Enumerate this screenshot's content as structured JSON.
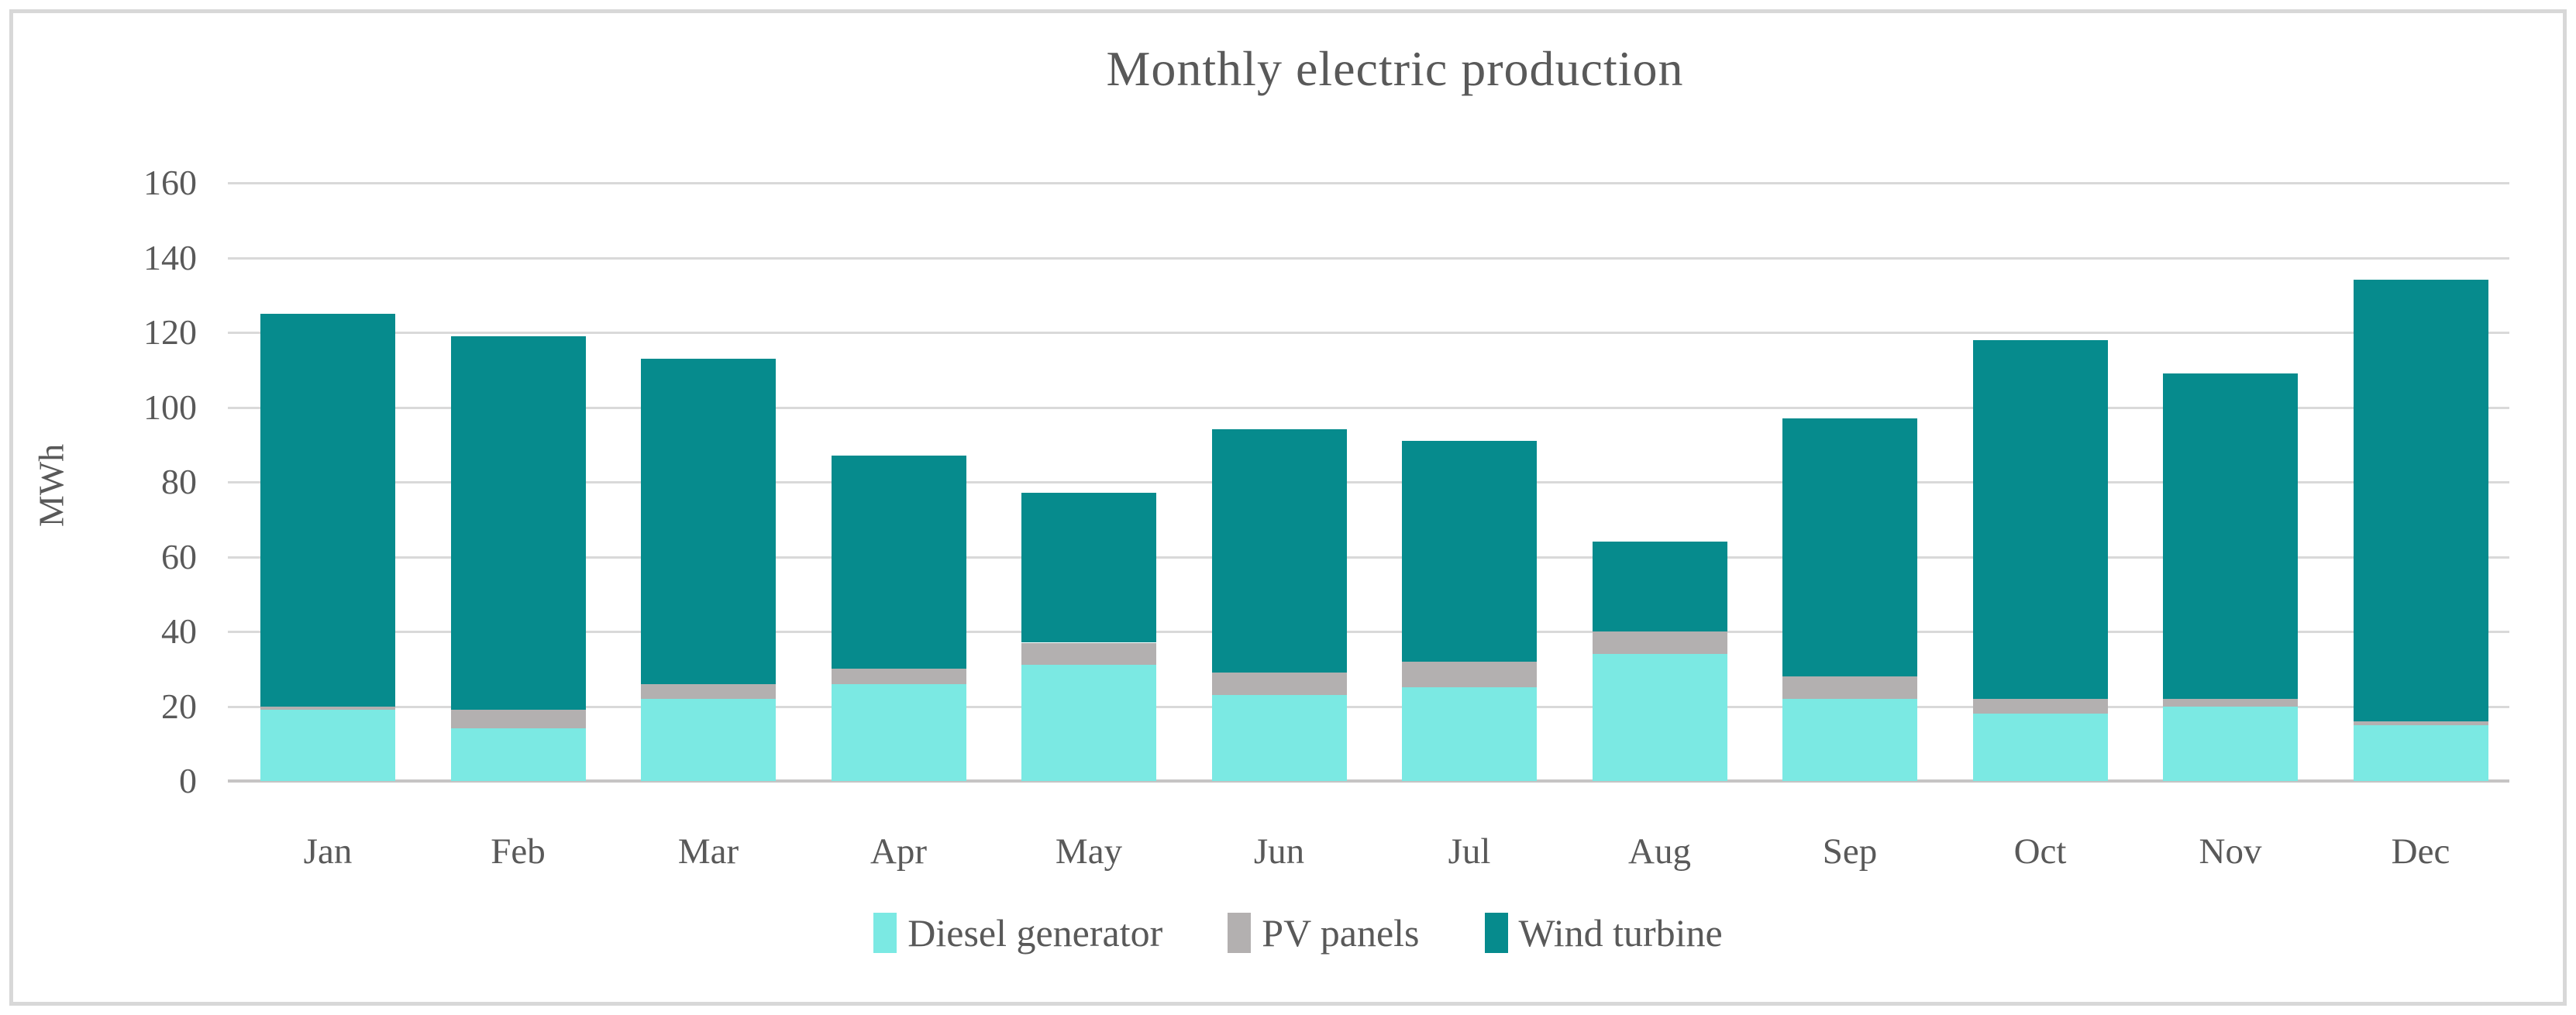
{
  "figure": {
    "title": "Monthly electric production",
    "y_axis_title": "MWh"
  },
  "chart_data": {
    "type": "bar",
    "stacked": true,
    "title": "Monthly electric production",
    "xlabel": "",
    "ylabel": "MWh",
    "ylim": [
      0,
      160
    ],
    "ytick_step": 20,
    "ytick_labels": [
      "0",
      "20",
      "40",
      "60",
      "80",
      "100",
      "120",
      "140",
      "160"
    ],
    "grid": true,
    "legend_position": "bottom",
    "categories": [
      "Jan",
      "Feb",
      "Mar",
      "Apr",
      "May",
      "Jun",
      "Jul",
      "Aug",
      "Sep",
      "Oct",
      "Nov",
      "Dec"
    ],
    "series": [
      {
        "name": "Diesel generator",
        "color": "#7BE9E3",
        "values": [
          19,
          14,
          22,
          26,
          31,
          23,
          25,
          34,
          22,
          18,
          20,
          15
        ]
      },
      {
        "name": "PV panels",
        "color": "#B3B0B0",
        "values": [
          1,
          5,
          4,
          4,
          6,
          6,
          7,
          6,
          6,
          4,
          2,
          1
        ]
      },
      {
        "name": "Wind turbine",
        "color": "#068B8D",
        "values": [
          105,
          100,
          87,
          57,
          40,
          65,
          59,
          24,
          69,
          96,
          87,
          118
        ]
      }
    ],
    "stack_totals": [
      125,
      119,
      113,
      87,
      77,
      94,
      91,
      64,
      97,
      118,
      109,
      134
    ],
    "units": "MWh"
  },
  "colors": {
    "accent_teal": "#068B8D",
    "accent_cyan": "#7BE9E3",
    "accent_gray": "#B3B0B0",
    "gridline": "#D9D9D9",
    "axis_line": "#C6C4C4",
    "text": "#595959",
    "frame_border": "#D8D8D8",
    "background": "#FFFFFF"
  }
}
